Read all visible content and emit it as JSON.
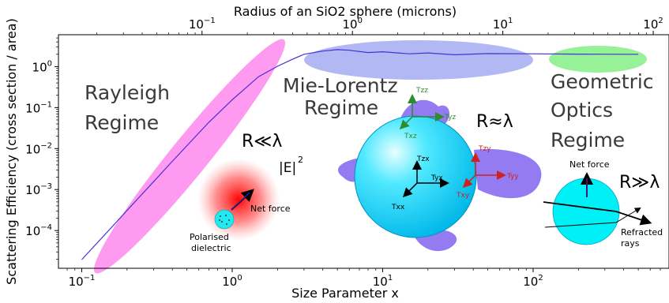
{
  "chart_data": {
    "type": "line",
    "xlabel": "Size Parameter x",
    "x2label": "Radius of an SiO2 sphere (microns)",
    "ylabel": "Scattering Efficiency (cross section / area)",
    "xscale": "log",
    "yscale": "log",
    "xlim": [
      0.07,
      800
    ],
    "ylim": [
      1.2e-05,
      6
    ],
    "x2lim": [
      0.0111,
      127.3
    ],
    "xticks": [
      0.1,
      1,
      10,
      100
    ],
    "xtick_labels": [
      "10",
      "10",
      "10",
      "10"
    ],
    "xtick_exps": [
      "−1",
      "0",
      "1",
      "2"
    ],
    "x2ticks": [
      0.1,
      1,
      10,
      100
    ],
    "x2tick_labels": [
      "10",
      "10",
      "10",
      "10"
    ],
    "x2tick_exps": [
      "−1",
      "0",
      "1",
      "2"
    ],
    "yticks": [
      0.0001,
      0.001,
      0.01,
      0.1,
      1
    ],
    "ytick_labels": [
      "10",
      "10",
      "10",
      "10",
      "10"
    ],
    "ytick_exps": [
      "−4",
      "−3",
      "−2",
      "−1",
      "0"
    ],
    "series": [
      {
        "color": "#4b2fd6",
        "x": [
          0.1,
          0.15,
          0.2,
          0.3,
          0.4,
          0.5,
          0.7,
          1.0,
          1.5,
          2.0,
          2.5,
          3.0,
          4,
          5,
          6,
          8,
          10,
          15,
          20,
          30,
          50,
          100,
          200,
          500
        ],
        "y": [
          1.95e-05,
          9.8e-05,
          0.00031,
          0.00155,
          0.0049,
          0.0118,
          0.044,
          0.155,
          0.57,
          1.02,
          1.5,
          2.0,
          2.4,
          2.6,
          2.5,
          2.2,
          2.3,
          2.05,
          2.15,
          1.95,
          2.08,
          2.05,
          2.02,
          2.0
        ]
      }
    ],
    "regions": [
      {
        "name": "Rayleigh",
        "color": "#ff80ee"
      },
      {
        "name": "Mie-Lorentz",
        "color": "#9aa6f0"
      },
      {
        "name": "Geometric",
        "color": "#86ee86"
      }
    ]
  },
  "labels": {
    "rayleigh_1": "Rayleigh",
    "rayleigh_2": "Regime",
    "mie_1": "Mie-Lorentz",
    "mie_2": "Regime",
    "geo_1": "Geometric",
    "geo_2": "Optics",
    "geo_3": "Regime",
    "r_small": "R≪λ",
    "r_equal": "R≈λ",
    "r_large": "R≫λ",
    "efield": "|E|",
    "efield_exp": "2",
    "net_force_left": "Net force",
    "polarised_1": "Polarised",
    "polarised_2": "dielectric",
    "net_force_right": "Net force",
    "refracted_1": "Refracted",
    "refracted_2": "rays"
  },
  "torques": {
    "tzz": "Tzz",
    "tyz": "Tyz",
    "txz": "Txz",
    "tzx": "Tzx",
    "tyx": "Tyx",
    "txx": "Txx",
    "tzy": "Tzy",
    "tyy": "Tyy",
    "txy": "Txy"
  },
  "colors": {
    "torque_green": "#2e8b2e",
    "torque_black": "#000000",
    "torque_red": "#cc2222",
    "sphere": "#00e5ff",
    "lobes": "#8a6df0"
  }
}
